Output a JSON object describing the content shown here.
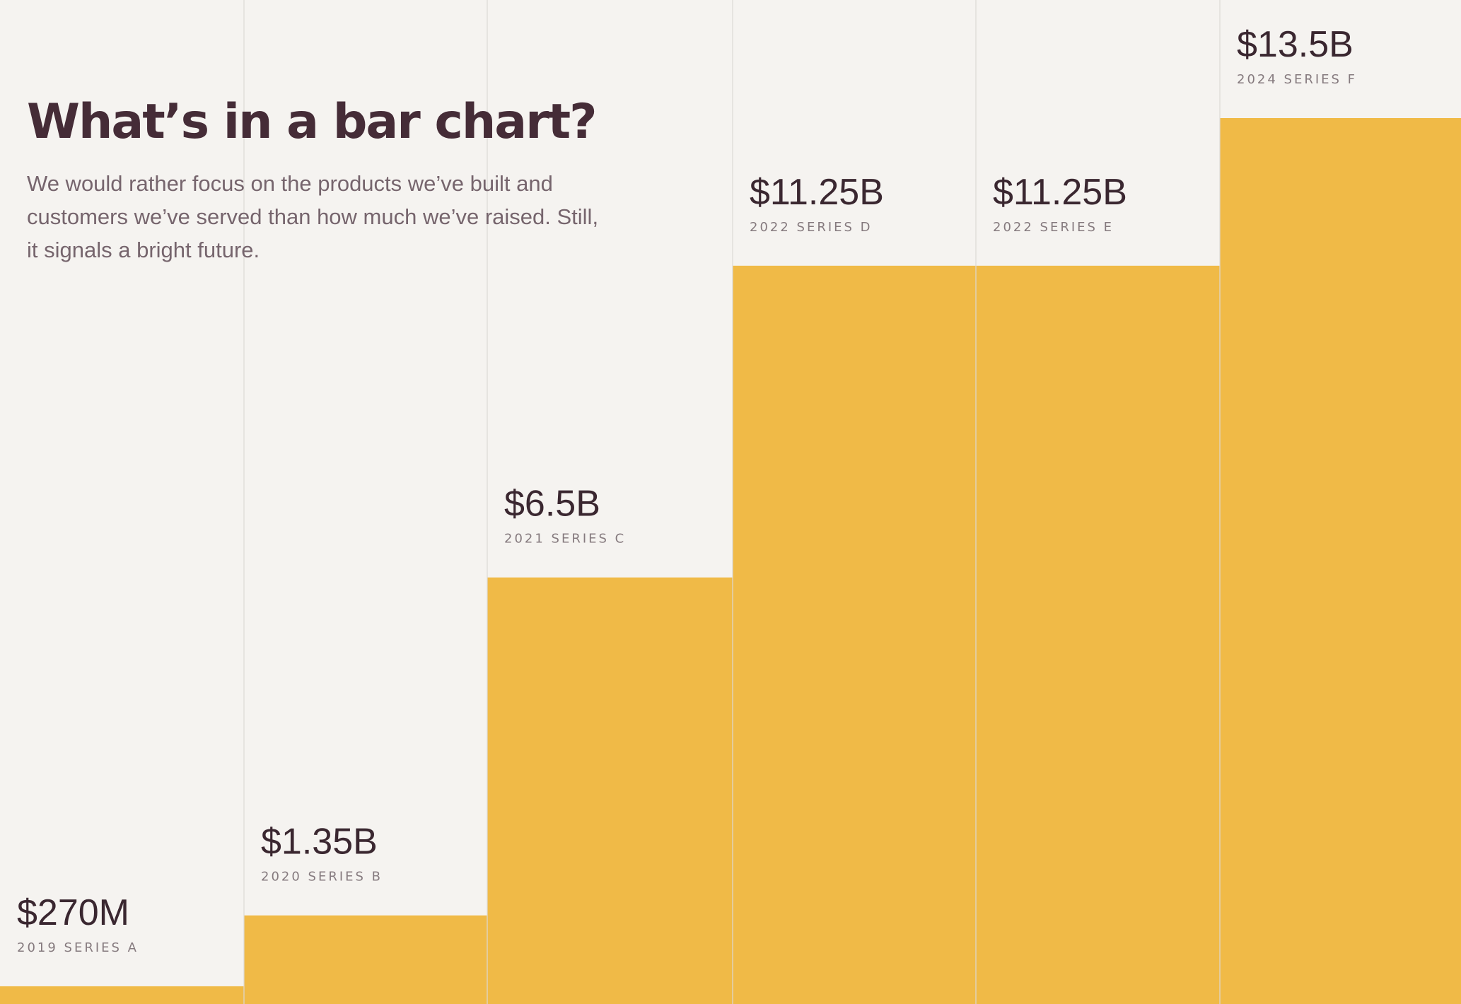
{
  "header": {
    "title": "What’s in a bar chart?",
    "subtitle": "We would rather focus on the products we’ve built and customers we’ve served than how much we’ve raised. Still, it signals a bright future."
  },
  "colors": {
    "background": "#f5f3f0",
    "bar": "#f0ba47",
    "divider": "#dcd8d4",
    "value_text": "#3a2730",
    "label_text": "#857a7e"
  },
  "chart_data": {
    "type": "bar",
    "title": "What’s in a bar chart?",
    "xlabel": "",
    "ylabel": "",
    "ylim": [
      0,
      13.5
    ],
    "unit": "billion USD",
    "grid": false,
    "categories": [
      "2019 SERIES A",
      "2020 SERIES B",
      "2021 SERIES C",
      "2022 SERIES D",
      "2022 SERIES E",
      "2024 SERIES F"
    ],
    "values": [
      0.27,
      1.35,
      6.5,
      11.25,
      11.25,
      13.5
    ],
    "data_labels": [
      "$270M",
      "$1.35B",
      "$6.5B",
      "$11.25B",
      "$11.25B",
      "$13.5B"
    ]
  }
}
